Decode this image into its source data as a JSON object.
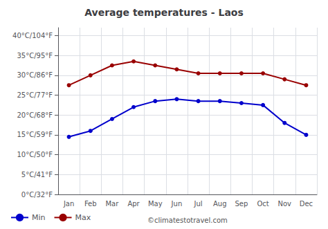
{
  "chart_data": {
    "type": "line",
    "title": "Average temperatures - Laos",
    "categories": [
      "Jan",
      "Feb",
      "Mar",
      "Apr",
      "May",
      "Jun",
      "Jul",
      "Aug",
      "Sep",
      "Oct",
      "Nov",
      "Dec"
    ],
    "series": [
      {
        "name": "Min",
        "color": "#0000cc",
        "values": [
          14.5,
          16.0,
          19.0,
          22.0,
          23.5,
          24.0,
          23.5,
          23.5,
          23.0,
          22.5,
          18.0,
          15.0
        ]
      },
      {
        "name": "Max",
        "color": "#990000",
        "values": [
          27.5,
          30.0,
          32.5,
          33.5,
          32.5,
          31.5,
          30.5,
          30.5,
          30.5,
          30.5,
          29.0,
          27.5
        ]
      }
    ],
    "ylim": [
      0,
      42
    ],
    "yticks": [
      {
        "value": 0,
        "label": "0°C/32°F"
      },
      {
        "value": 5,
        "label": "5°C/41°F"
      },
      {
        "value": 10,
        "label": "10°C/50°F"
      },
      {
        "value": 15,
        "label": "15°C/59°F"
      },
      {
        "value": 20,
        "label": "20°C/68°F"
      },
      {
        "value": 25,
        "label": "25°C/77°F"
      },
      {
        "value": 30,
        "label": "30°C/86°F"
      },
      {
        "value": 35,
        "label": "35°C/95°F"
      },
      {
        "value": 40,
        "label": "40°C/104°F"
      }
    ],
    "grid": true,
    "legend": "bottom left",
    "marker": "circle",
    "annotations": [
      "©climatestotravel.com"
    ]
  }
}
